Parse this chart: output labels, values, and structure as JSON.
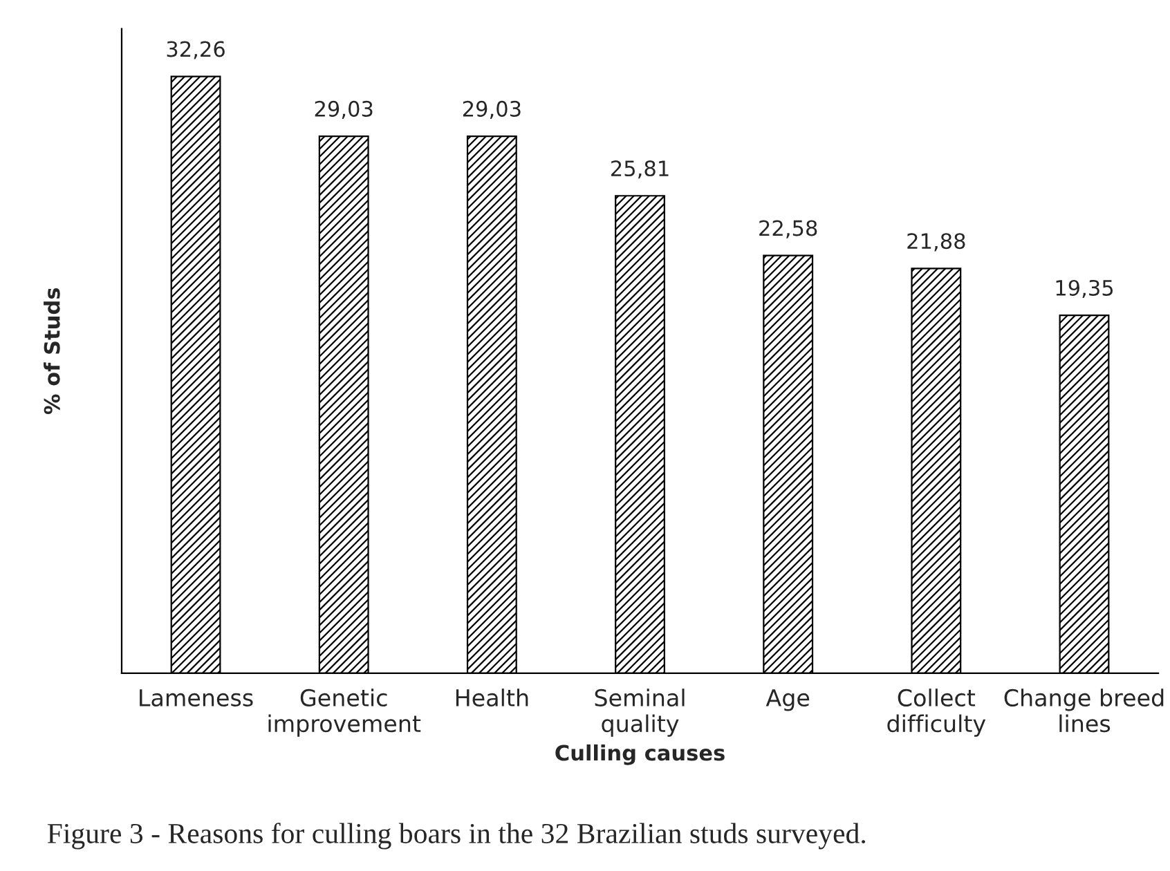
{
  "chart_data": {
    "type": "bar",
    "categories": [
      "Lameness",
      "Genetic improvement",
      "Health",
      "Seminal quality",
      "Age",
      "Collect difficulty",
      "Change breed lines"
    ],
    "values": [
      32.26,
      29.03,
      29.03,
      25.81,
      22.58,
      21.88,
      19.35
    ],
    "color": "#000000",
    "value_labels": [
      "32,26",
      "29,03",
      "29,03",
      "25,81",
      "22,58",
      "21,88",
      "19,35"
    ],
    "xlabel": "Culling causes",
    "ylabel": "% of Studs",
    "annotations": [
      "Figure 3 - Reasons for culling boars in the 32 Brazilian studs surveyed."
    ]
  }
}
